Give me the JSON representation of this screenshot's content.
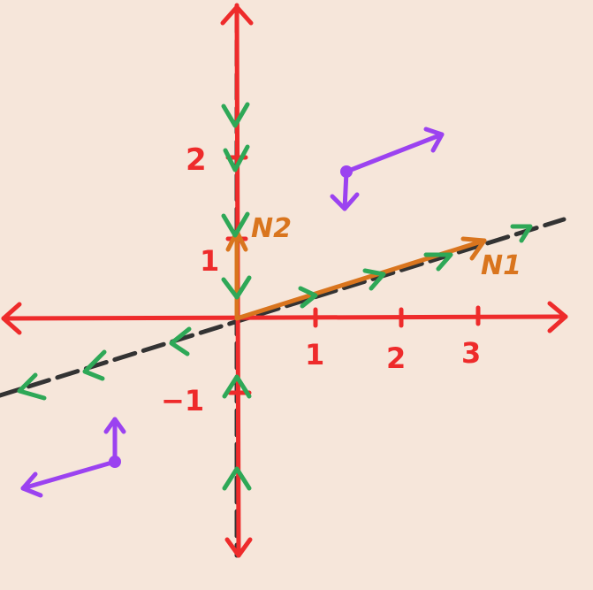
{
  "colors": {
    "background": "#f6e6da",
    "axis": "#ee2b2b",
    "dashed_line": "#333333",
    "flow_arrow": "#2ea857",
    "eigenvector": "#d9751e",
    "sample": "#9b42f0"
  },
  "axes": {
    "x_ticks": [
      "1",
      "2",
      "3"
    ],
    "y_ticks": [
      "2",
      "1",
      "−1"
    ]
  },
  "eigenvectors": {
    "v1_label": "N1",
    "v2_label": "N2"
  }
}
